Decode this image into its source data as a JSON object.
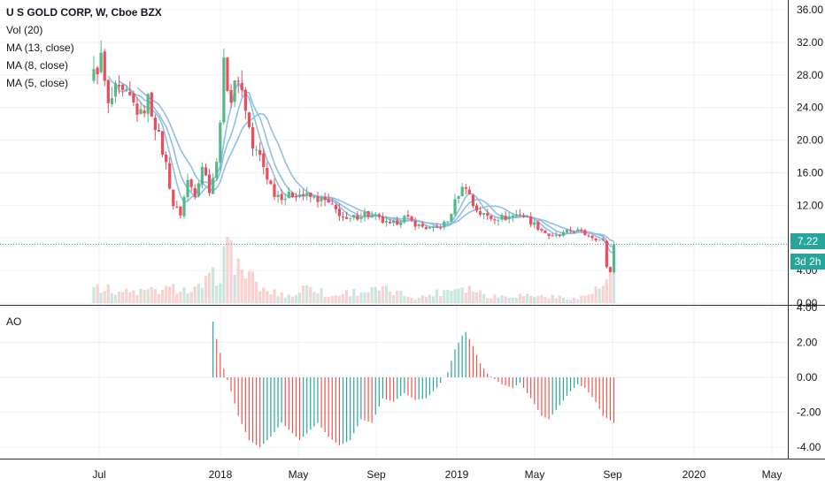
{
  "legend": {
    "title": "U S GOLD CORP, W, Cboe BZX",
    "vol": "Vol (20)",
    "ma13": "MA (13, close)",
    "ma8": "MA (8, close)",
    "ma5": "MA (5, close)"
  },
  "ao_label": "AO",
  "price_tag": {
    "last": "7.22",
    "countdown": "3d 2h"
  },
  "colors": {
    "up": "#26a69a",
    "down": "#ef5350",
    "up_candle": "#53b987",
    "down_candle": "#eb4d5c",
    "ma": "#90bfe6",
    "last_line": "#26a69a",
    "countdown_bg": "#26a69a"
  },
  "chart_data": [
    {
      "type": "candlestick",
      "title": "U S GOLD CORP, W, Cboe BZX",
      "ylim": [
        0,
        36
      ],
      "yticks": [
        "36.00",
        "32.00",
        "28.00",
        "24.00",
        "20.00",
        "16.00",
        "12.00",
        "8.00",
        "4.00",
        "0.00"
      ],
      "xticks": [
        "Jul",
        "2018",
        "May",
        "Sep",
        "2019",
        "May",
        "Sep",
        "2020",
        "May"
      ],
      "last_price": 7.22,
      "anchors": [
        {
          "t": 0,
          "p": 28
        },
        {
          "t": 2,
          "p": 30
        },
        {
          "t": 4,
          "p": 24
        },
        {
          "t": 6,
          "p": 26
        },
        {
          "t": 10,
          "p": 25
        },
        {
          "t": 13,
          "p": 23
        },
        {
          "t": 15,
          "p": 25
        },
        {
          "t": 17,
          "p": 22
        },
        {
          "t": 20,
          "p": 17
        },
        {
          "t": 22,
          "p": 12
        },
        {
          "t": 24,
          "p": 11
        },
        {
          "t": 26,
          "p": 15
        },
        {
          "t": 28,
          "p": 13.5
        },
        {
          "t": 30,
          "p": 17
        },
        {
          "t": 32,
          "p": 14
        },
        {
          "t": 34,
          "p": 17
        },
        {
          "t": 36,
          "p": 29
        },
        {
          "t": 38,
          "p": 25
        },
        {
          "t": 40,
          "p": 28
        },
        {
          "t": 42,
          "p": 24
        },
        {
          "t": 44,
          "p": 19
        },
        {
          "t": 46,
          "p": 18
        },
        {
          "t": 48,
          "p": 15.5
        },
        {
          "t": 50,
          "p": 13.5
        },
        {
          "t": 53,
          "p": 13
        },
        {
          "t": 56,
          "p": 13.5
        },
        {
          "t": 60,
          "p": 13
        },
        {
          "t": 64,
          "p": 12.5
        },
        {
          "t": 68,
          "p": 11
        },
        {
          "t": 70,
          "p": 10
        },
        {
          "t": 72,
          "p": 10.5
        },
        {
          "t": 75,
          "p": 11
        },
        {
          "t": 78,
          "p": 10.5
        },
        {
          "t": 82,
          "p": 9.5
        },
        {
          "t": 86,
          "p": 10.5
        },
        {
          "t": 90,
          "p": 9.5
        },
        {
          "t": 94,
          "p": 9.0
        },
        {
          "t": 98,
          "p": 10.0
        },
        {
          "t": 101,
          "p": 13.5
        },
        {
          "t": 103,
          "p": 14.5
        },
        {
          "t": 105,
          "p": 12
        },
        {
          "t": 107,
          "p": 11
        },
        {
          "t": 110,
          "p": 10.5
        },
        {
          "t": 114,
          "p": 10.5
        },
        {
          "t": 118,
          "p": 11
        },
        {
          "t": 121,
          "p": 10
        },
        {
          "t": 124,
          "p": 9
        },
        {
          "t": 127,
          "p": 8
        },
        {
          "t": 130,
          "p": 8.5
        },
        {
          "t": 133,
          "p": 9
        },
        {
          "t": 136,
          "p": 8.5
        },
        {
          "t": 139,
          "p": 8
        },
        {
          "t": 141,
          "p": 7.5
        },
        {
          "t": 142,
          "p": 4.5
        },
        {
          "t": 143,
          "p": 3.8
        },
        {
          "t": 144,
          "p": 7.22
        }
      ],
      "volume_profile": [
        {
          "t": 0,
          "v": 0.28
        },
        {
          "t": 1,
          "v": 0.22
        },
        {
          "t": 3,
          "v": 0.16
        },
        {
          "t": 10,
          "v": 0.12
        },
        {
          "t": 20,
          "v": 0.15
        },
        {
          "t": 24,
          "v": 0.18
        },
        {
          "t": 27,
          "v": 0.11
        },
        {
          "t": 35,
          "v": 0.35
        },
        {
          "t": 37,
          "v": 0.72
        },
        {
          "t": 40,
          "v": 0.42
        },
        {
          "t": 43,
          "v": 0.3
        },
        {
          "t": 47,
          "v": 0.14
        },
        {
          "t": 55,
          "v": 0.08
        },
        {
          "t": 60,
          "v": 0.22
        },
        {
          "t": 65,
          "v": 0.07
        },
        {
          "t": 70,
          "v": 0.12
        },
        {
          "t": 80,
          "v": 0.15
        },
        {
          "t": 90,
          "v": 0.06
        },
        {
          "t": 102,
          "v": 0.2
        },
        {
          "t": 110,
          "v": 0.08
        },
        {
          "t": 120,
          "v": 0.09
        },
        {
          "t": 134,
          "v": 0.05
        },
        {
          "t": 141,
          "v": 0.18
        },
        {
          "t": 144,
          "v": 0.4
        }
      ]
    },
    {
      "type": "histogram",
      "title": "AO",
      "ylim": [
        -4.6,
        4
      ],
      "yticks": [
        "4.00",
        "2.00",
        "0.00",
        "-2.00",
        "-4.00"
      ],
      "anchors": [
        {
          "t": 33,
          "v": 3.2
        },
        {
          "t": 34,
          "v": 2.2
        },
        {
          "t": 35,
          "v": 1.4
        },
        {
          "t": 36,
          "v": 0.5
        },
        {
          "t": 38,
          "v": -0.8
        },
        {
          "t": 40,
          "v": -2.2
        },
        {
          "t": 43,
          "v": -3.6
        },
        {
          "t": 46,
          "v": -4.0
        },
        {
          "t": 49,
          "v": -3.4
        },
        {
          "t": 52,
          "v": -2.6
        },
        {
          "t": 55,
          "v": -3.2
        },
        {
          "t": 57,
          "v": -3.6
        },
        {
          "t": 59,
          "v": -3.2
        },
        {
          "t": 62,
          "v": -2.6
        },
        {
          "t": 65,
          "v": -3.4
        },
        {
          "t": 68,
          "v": -3.9
        },
        {
          "t": 71,
          "v": -3.6
        },
        {
          "t": 74,
          "v": -2.4
        },
        {
          "t": 77,
          "v": -2.6
        },
        {
          "t": 80,
          "v": -1.2
        },
        {
          "t": 83,
          "v": -1.4
        },
        {
          "t": 86,
          "v": -0.9
        },
        {
          "t": 89,
          "v": -1.3
        },
        {
          "t": 92,
          "v": -1.2
        },
        {
          "t": 95,
          "v": -0.6
        },
        {
          "t": 98,
          "v": 0.3
        },
        {
          "t": 100,
          "v": 1.6
        },
        {
          "t": 102,
          "v": 2.4
        },
        {
          "t": 103,
          "v": 2.6
        },
        {
          "t": 105,
          "v": 1.8
        },
        {
          "t": 107,
          "v": 0.8
        },
        {
          "t": 109,
          "v": 0.2
        },
        {
          "t": 111,
          "v": -0.1
        },
        {
          "t": 113,
          "v": -0.4
        },
        {
          "t": 116,
          "v": -0.6
        },
        {
          "t": 118,
          "v": -0.3
        },
        {
          "t": 121,
          "v": -1.2
        },
        {
          "t": 124,
          "v": -2.2
        },
        {
          "t": 126,
          "v": -2.4
        },
        {
          "t": 129,
          "v": -1.6
        },
        {
          "t": 132,
          "v": -0.8
        },
        {
          "t": 134,
          "v": -0.4
        },
        {
          "t": 136,
          "v": -0.6
        },
        {
          "t": 139,
          "v": -1.4
        },
        {
          "t": 141,
          "v": -2.2
        },
        {
          "t": 144,
          "v": -2.6
        }
      ]
    }
  ]
}
